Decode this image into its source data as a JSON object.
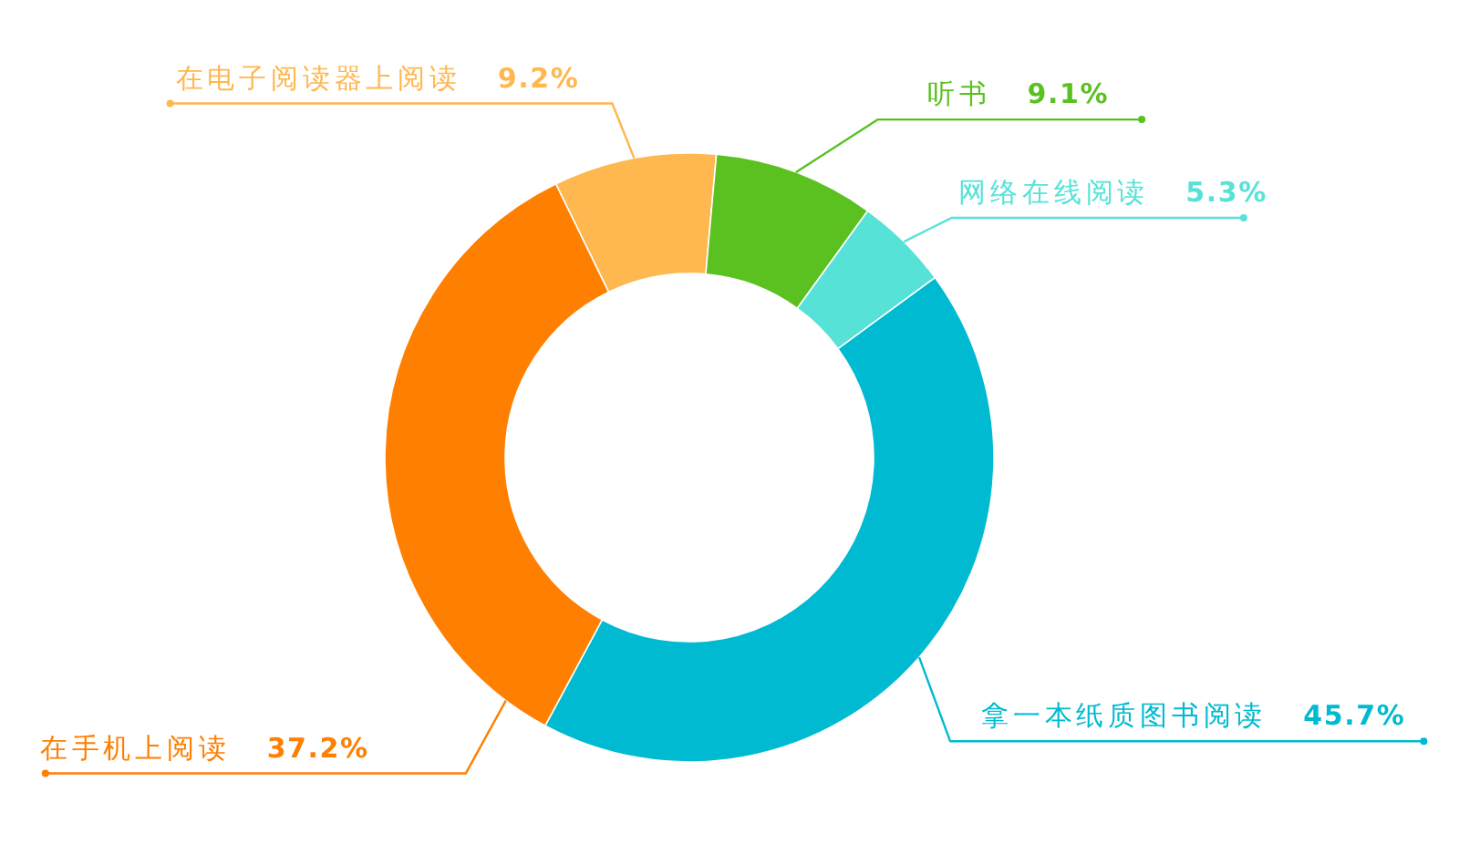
{
  "chart_data": {
    "type": "donut",
    "categories": [
      "在电子阅读器上阅读",
      "听书",
      "网络在线阅读",
      "拿一本纸质图书阅读",
      "在手机上阅读"
    ],
    "values": [
      9.2,
      9.1,
      5.3,
      45.7,
      37.2
    ],
    "colors": [
      "#ffb74f",
      "#5ac121",
      "#57e2d8",
      "#00bad1",
      "#ff7f00"
    ],
    "value_labels": [
      "9.2%",
      "9.1%",
      "5.3%",
      "45.7%",
      "37.2%"
    ]
  }
}
